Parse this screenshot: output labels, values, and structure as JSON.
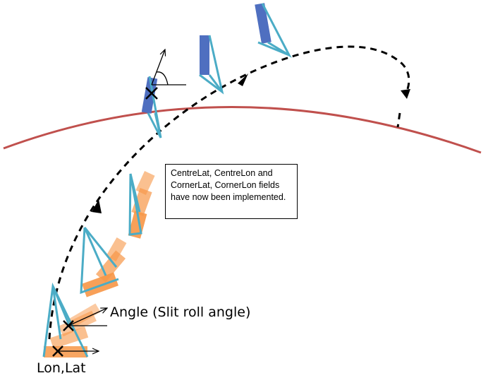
{
  "labels": {
    "angle": "Angle (Slit roll angle)",
    "lonlat": "Lon,Lat"
  },
  "note": {
    "text": "CentreLat, CentreLon and CornerLat, CornerLon fields have now been implemented."
  },
  "colors": {
    "horizon": "#c0504d",
    "trajectory": "#000000",
    "footprint_edge": "#4bacc6",
    "slit_orange": "#f79646",
    "slit_blue": "#4f6fc0"
  }
}
